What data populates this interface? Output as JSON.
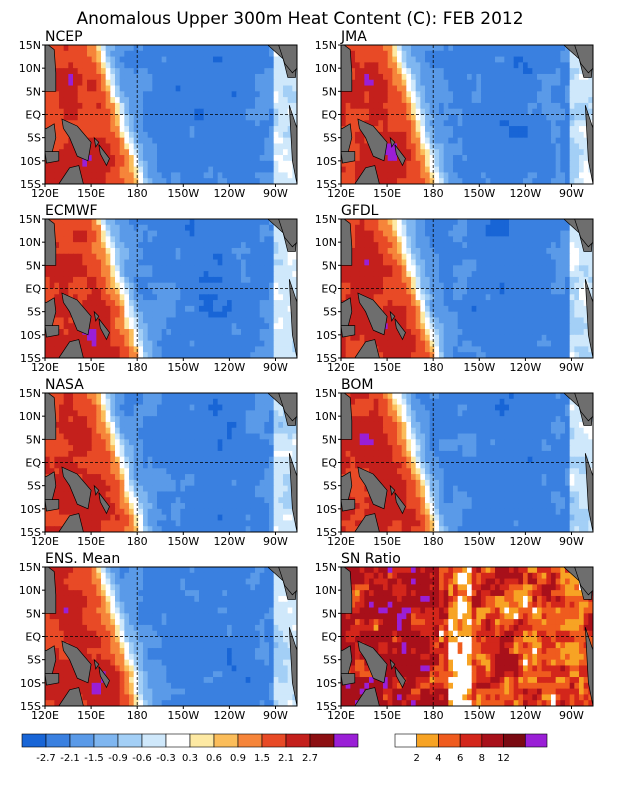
{
  "title": "Anomalous Upper 300m Heat Content (C): FEB 2012",
  "chart_data": [
    {
      "type": "heatmap",
      "title": "NCEP",
      "x_ticks": [
        "120E",
        "150E",
        "180",
        "150W",
        "120W",
        "90W"
      ],
      "y_ticks": [
        "15N",
        "10N",
        "5N",
        "EQ",
        "5S",
        "10S",
        "15S"
      ],
      "colorbar": "anomaly"
    },
    {
      "type": "heatmap",
      "title": "JMA",
      "x_ticks": [
        "120E",
        "150E",
        "180",
        "150W",
        "120W",
        "90W"
      ],
      "y_ticks": [
        "15N",
        "10N",
        "5N",
        "EQ",
        "5S",
        "10S",
        "15S"
      ],
      "colorbar": "anomaly"
    },
    {
      "type": "heatmap",
      "title": "ECMWF",
      "x_ticks": [
        "120E",
        "150E",
        "180",
        "150W",
        "120W",
        "90W"
      ],
      "y_ticks": [
        "15N",
        "10N",
        "5N",
        "EQ",
        "5S",
        "10S",
        "15S"
      ],
      "colorbar": "anomaly"
    },
    {
      "type": "heatmap",
      "title": "GFDL",
      "x_ticks": [
        "120E",
        "150E",
        "180",
        "150W",
        "120W",
        "90W"
      ],
      "y_ticks": [
        "15N",
        "10N",
        "5N",
        "EQ",
        "5S",
        "10S",
        "15S"
      ],
      "colorbar": "anomaly"
    },
    {
      "type": "heatmap",
      "title": "NASA",
      "x_ticks": [
        "120E",
        "150E",
        "180",
        "150W",
        "120W",
        "90W"
      ],
      "y_ticks": [
        "15N",
        "10N",
        "5N",
        "EQ",
        "5S",
        "10S",
        "15S"
      ],
      "colorbar": "anomaly"
    },
    {
      "type": "heatmap",
      "title": "BOM",
      "x_ticks": [
        "120E",
        "150E",
        "180",
        "150W",
        "120W",
        "90W"
      ],
      "y_ticks": [
        "15N",
        "10N",
        "5N",
        "EQ",
        "5S",
        "10S",
        "15S"
      ],
      "colorbar": "anomaly"
    },
    {
      "type": "heatmap",
      "title": "ENS. Mean",
      "x_ticks": [
        "120E",
        "150E",
        "180",
        "150W",
        "120W",
        "90W"
      ],
      "y_ticks": [
        "15N",
        "10N",
        "5N",
        "EQ",
        "5S",
        "10S",
        "15S"
      ],
      "colorbar": "anomaly"
    },
    {
      "type": "heatmap",
      "title": "SN Ratio",
      "x_ticks": [
        "120E",
        "150E",
        "180",
        "150W",
        "120W",
        "90W"
      ],
      "y_ticks": [
        "15N",
        "10N",
        "5N",
        "EQ",
        "5S",
        "10S",
        "15S"
      ],
      "colorbar": "snr"
    }
  ],
  "colorbars": {
    "anomaly": {
      "colors": [
        "#1865d6",
        "#3a80e0",
        "#5a9ae8",
        "#7fb6f0",
        "#a3cff6",
        "#cfe8fb",
        "#ffffff",
        "#fde9a3",
        "#fbbd5a",
        "#f6853a",
        "#e84a26",
        "#c4201c",
        "#8c0f12",
        "#9a1fd6"
      ],
      "labels": [
        "-2.7",
        "-2.1",
        "-1.5",
        "-0.9",
        "-0.6",
        "-0.3",
        "0.3",
        "0.6",
        "0.9",
        "1.5",
        "2.1",
        "2.7"
      ]
    },
    "snr": {
      "colors": [
        "#ffffff",
        "#f7a324",
        "#ef5b1e",
        "#d3261b",
        "#a8101a",
        "#7a0a12",
        "#9a1fd6"
      ],
      "labels": [
        "2",
        "4",
        "6",
        "8",
        "12"
      ]
    }
  }
}
